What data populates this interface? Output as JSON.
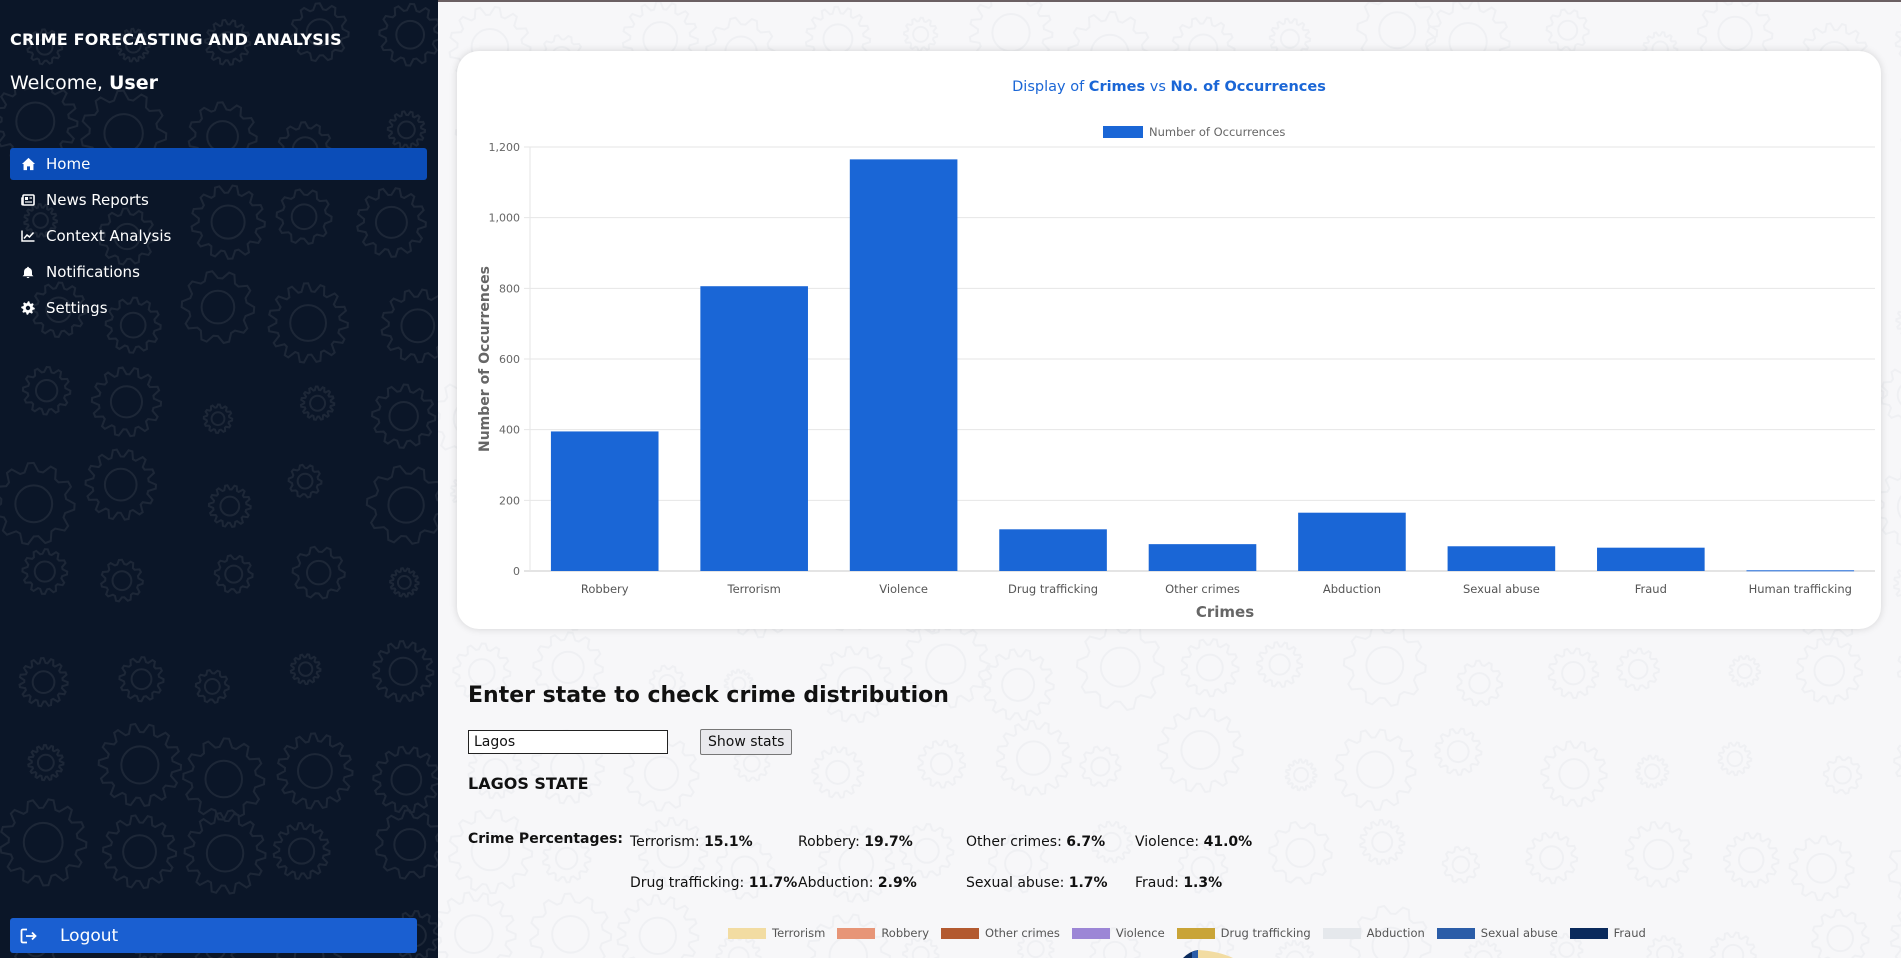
{
  "sidebar": {
    "brand": "CRIME FORECASTING AND ANALYSIS",
    "welcome_prefix": "Welcome,",
    "welcome_user": "User",
    "items": [
      {
        "label": "Home",
        "icon": "home-icon",
        "active": true
      },
      {
        "label": "News Reports",
        "icon": "newspaper-icon",
        "active": false
      },
      {
        "label": "Context Analysis",
        "icon": "line-chart-icon",
        "active": false
      },
      {
        "label": "Notifications",
        "icon": "bell-icon",
        "active": false
      },
      {
        "label": "Settings",
        "icon": "gear-icon",
        "active": false
      }
    ],
    "logout_label": "Logout"
  },
  "chart_data": {
    "type": "bar",
    "title_parts": [
      "Display of ",
      "Crimes",
      " vs ",
      "No. of Occurrences"
    ],
    "xlabel": "Crimes",
    "ylabel": "Number of Occurrences",
    "ylim": [
      0,
      1200
    ],
    "yticks": [
      "0",
      "200",
      "400",
      "600",
      "800",
      "1,000",
      "1,200"
    ],
    "legend_position": "top-center",
    "grid": true,
    "categories": [
      "Robbery",
      "Terrorism",
      "Violence",
      "Drug trafficking",
      "Other crimes",
      "Abduction",
      "Sexual abuse",
      "Fraud",
      "Human trafficking"
    ],
    "series": [
      {
        "name": "Number of Occurrences",
        "color": "#1a66d6",
        "values": [
          395,
          806,
          1165,
          118,
          76,
          165,
          70,
          66,
          2
        ]
      }
    ]
  },
  "stats": {
    "section_title": "Enter state to check crime distribution",
    "input_value": "Lagos",
    "button_label": "Show stats",
    "state_name": "LAGOS STATE",
    "percentages_label": "Crime Percentages:",
    "percentages": [
      {
        "name": "Terrorism:",
        "value": "15.1%"
      },
      {
        "name": "Robbery:",
        "value": "19.7%"
      },
      {
        "name": "Other crimes:",
        "value": "6.7%"
      },
      {
        "name": "Violence:",
        "value": "41.0%"
      },
      {
        "name": "Drug trafficking:",
        "value": "11.7%"
      },
      {
        "name": "Abduction:",
        "value": "2.9%"
      },
      {
        "name": "Sexual abuse:",
        "value": "1.7%"
      },
      {
        "name": "Fraud:",
        "value": "1.3%"
      }
    ],
    "pie_legend": [
      {
        "name": "Terrorism",
        "color": "#f2dca2"
      },
      {
        "name": "Robbery",
        "color": "#e79577"
      },
      {
        "name": "Other crimes",
        "color": "#b35a30"
      },
      {
        "name": "Violence",
        "color": "#9c86d6"
      },
      {
        "name": "Drug trafficking",
        "color": "#c9a437"
      },
      {
        "name": "Abduction",
        "color": "#e5e8ec"
      },
      {
        "name": "Sexual abuse",
        "color": "#2b5da8"
      },
      {
        "name": "Fraud",
        "color": "#0a2a5c"
      }
    ]
  }
}
